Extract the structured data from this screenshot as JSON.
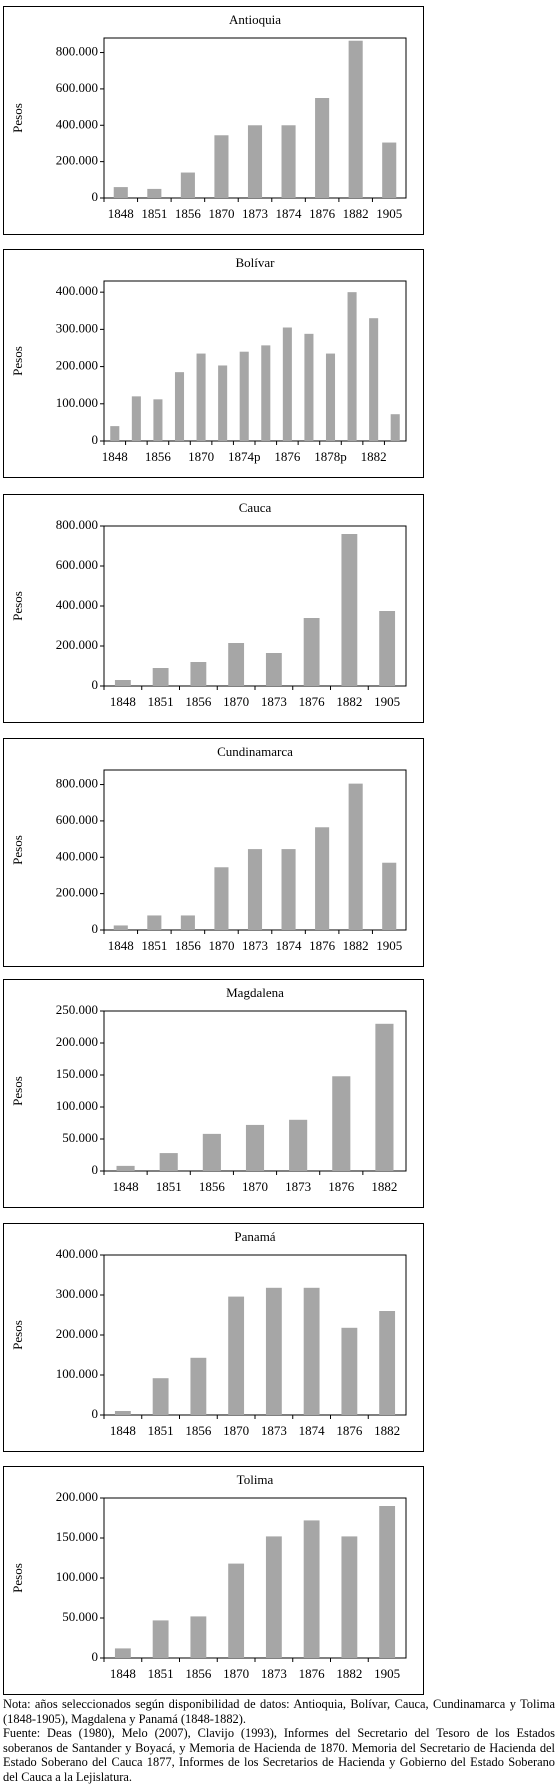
{
  "chart_data": [
    {
      "type": "bar",
      "title": "Antioquia",
      "ylabel": "Pesos",
      "color": "#a6a6a6",
      "categories": [
        "1848",
        "1851",
        "1856",
        "1870",
        "1873",
        "1874",
        "1876",
        "1882",
        "1905"
      ],
      "values": [
        60000,
        50000,
        140000,
        345000,
        400000,
        400000,
        550000,
        865000,
        305000
      ],
      "ylim": [
        0,
        880000
      ],
      "yticks": [
        0,
        {
          "value": 200000,
          "label": "200.000"
        },
        {
          "value": 400000,
          "label": "400.000"
        },
        {
          "value": 600000,
          "label": "600.000"
        },
        {
          "value": 800000,
          "label": "800.000"
        }
      ]
    },
    {
      "type": "bar",
      "title": "Bolívar",
      "ylabel": "Pesos",
      "color": "#a6a6a6",
      "categories": [
        "1848",
        null,
        "1856",
        null,
        "1870",
        null,
        "1874p",
        null,
        "1876",
        null,
        "1878p",
        null,
        "1882",
        null
      ],
      "values": [
        40000,
        120000,
        112000,
        185000,
        235000,
        203000,
        240000,
        257000,
        305000,
        288000,
        235000,
        400000,
        330000,
        72000
      ],
      "ylim": [
        0,
        430000
      ],
      "yticks": [
        0,
        {
          "value": 100000,
          "label": "100.000"
        },
        {
          "value": 200000,
          "label": "200.000"
        },
        {
          "value": 300000,
          "label": "300.000"
        },
        {
          "value": 400000,
          "label": "400.000"
        }
      ]
    },
    {
      "type": "bar",
      "title": "Cauca",
      "ylabel": "Pesos",
      "color": "#a6a6a6",
      "categories": [
        "1848",
        "1851",
        "1856",
        "1870",
        "1873",
        "1876",
        "1882",
        "1905"
      ],
      "values": [
        30000,
        90000,
        120000,
        215000,
        165000,
        340000,
        760000,
        375000
      ],
      "ylim": [
        0,
        800000
      ],
      "yticks": [
        0,
        {
          "value": 200000,
          "label": "200.000"
        },
        {
          "value": 400000,
          "label": "400.000"
        },
        {
          "value": 600000,
          "label": "600.000"
        },
        {
          "value": 800000,
          "label": "800.000"
        }
      ]
    },
    {
      "type": "bar",
      "title": "Cundinamarca",
      "ylabel": "Pesos",
      "color": "#a6a6a6",
      "categories": [
        "1848",
        "1851",
        "1856",
        "1870",
        "1873",
        "1874",
        "1876",
        "1882",
        "1905"
      ],
      "values": [
        25000,
        80000,
        80000,
        345000,
        445000,
        445000,
        565000,
        805000,
        370000
      ],
      "ylim": [
        0,
        880000
      ],
      "yticks": [
        0,
        {
          "value": 200000,
          "label": "200.000"
        },
        {
          "value": 400000,
          "label": "400.000"
        },
        {
          "value": 600000,
          "label": "600.000"
        },
        {
          "value": 800000,
          "label": "800.000"
        }
      ]
    },
    {
      "type": "bar",
      "title": "Magdalena",
      "ylabel": "Pesos",
      "color": "#a6a6a6",
      "categories": [
        "1848",
        "1851",
        "1856",
        "1870",
        "1873",
        "1876",
        "1882"
      ],
      "values": [
        8000,
        28000,
        58000,
        72000,
        80000,
        148000,
        230000
      ],
      "ylim": [
        0,
        250000
      ],
      "yticks": [
        0,
        {
          "value": 50000,
          "label": "50.000"
        },
        {
          "value": 100000,
          "label": "100.000"
        },
        {
          "value": 150000,
          "label": "150.000"
        },
        {
          "value": 200000,
          "label": "200.000"
        },
        {
          "value": 250000,
          "label": "250.000"
        }
      ]
    },
    {
      "type": "bar",
      "title": "Panamá",
      "ylabel": "Pesos",
      "color": "#a6a6a6",
      "categories": [
        "1848",
        "1851",
        "1856",
        "1870",
        "1873",
        "1874",
        "1876",
        "1882"
      ],
      "values": [
        10000,
        92000,
        143000,
        296000,
        318000,
        318000,
        218000,
        260000
      ],
      "ylim": [
        0,
        400000
      ],
      "yticks": [
        0,
        {
          "value": 100000,
          "label": "100.000"
        },
        {
          "value": 200000,
          "label": "200.000"
        },
        {
          "value": 300000,
          "label": "300.000"
        },
        {
          "value": 400000,
          "label": "400.000"
        }
      ]
    },
    {
      "type": "bar",
      "title": "Tolima",
      "ylabel": "Pesos",
      "color": "#a6a6a6",
      "categories": [
        "1848",
        "1851",
        "1856",
        "1870",
        "1873",
        "1876",
        "1882",
        "1905"
      ],
      "values": [
        12000,
        47000,
        52000,
        118000,
        152000,
        172000,
        152000,
        190000
      ],
      "ylim": [
        0,
        200000
      ],
      "yticks": [
        0,
        {
          "value": 50000,
          "label": "50.000"
        },
        {
          "value": 100000,
          "label": "100.000"
        },
        {
          "value": 150000,
          "label": "150.000"
        },
        {
          "value": 200000,
          "label": "200.000"
        }
      ]
    }
  ],
  "note": [
    "Nota: años seleccionados según disponibilidad de datos: Antioquia, Bolívar, Cauca, Cundinamarca y Tolima (1848-1905), Magdalena y Panamá (1848-1882).",
    "Fuente: Deas (1980), Melo (2007), Clavijo (1993), Informes del Secretario del Tesoro de los Estados soberanos de Santander y Boyacá, y Memoria de Hacienda de 1870. Memoria del Secretario de Hacienda del Estado Soberano del Cauca 1877, Informes de los Secretarios de Hacienda y Gobierno del Estado Soberano del Cauca a la Lejislatura."
  ]
}
